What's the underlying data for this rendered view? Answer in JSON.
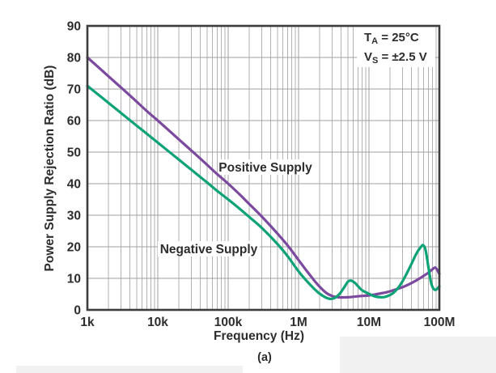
{
  "chart_data": {
    "type": "line",
    "title": "",
    "xlabel": "Frequency (Hz)",
    "ylabel": "Power Supply Rejection Ratio (dB)",
    "caption": "(a)",
    "x_scale": "log",
    "xlim": [
      1000,
      100000000
    ],
    "ylim": [
      0,
      90
    ],
    "y_ticks": [
      0,
      10,
      20,
      30,
      40,
      50,
      60,
      70,
      80,
      90
    ],
    "x_ticks": [
      {
        "value": 1000,
        "label": "1k"
      },
      {
        "value": 10000,
        "label": "10k"
      },
      {
        "value": 100000,
        "label": "100k"
      },
      {
        "value": 1000000,
        "label": "1M"
      },
      {
        "value": 10000000,
        "label": "10M"
      },
      {
        "value": 100000000,
        "label": "100M"
      }
    ],
    "grid": {
      "vertical": "log minor lines each decade",
      "horizontal": "every 10 dB",
      "major_color": "#9f9f9f",
      "minor_color": "#b2b2b2"
    },
    "frame_color": "#3c3c3c",
    "text_color": "#2d2d2d",
    "legend_position": "inline curve labels",
    "annotation": {
      "lines": [
        {
          "pre": "T",
          "sub": "A",
          "post": " = 25°C"
        },
        {
          "pre": "V",
          "sub": "S",
          "post": " = ±2.5 V"
        }
      ]
    },
    "series": [
      {
        "name": "Positive Supply",
        "color": "#7b4a9e",
        "points": [
          [
            1000,
            80
          ],
          [
            2000,
            74
          ],
          [
            3000,
            70.5
          ],
          [
            5000,
            66
          ],
          [
            7000,
            63
          ],
          [
            10000,
            60
          ],
          [
            20000,
            54
          ],
          [
            30000,
            50.5
          ],
          [
            50000,
            46
          ],
          [
            70000,
            43
          ],
          [
            100000,
            40
          ],
          [
            150000,
            36.3
          ],
          [
            200000,
            33.5
          ],
          [
            300000,
            29.6
          ],
          [
            500000,
            24.2
          ],
          [
            700000,
            20.4
          ],
          [
            1000000,
            15.8
          ],
          [
            1300000,
            12.4
          ],
          [
            1700000,
            9.1
          ],
          [
            2000000,
            7.3
          ],
          [
            2500000,
            5.3
          ],
          [
            3000000,
            4.4
          ],
          [
            3500000,
            4.05
          ],
          [
            4000000,
            3.95
          ],
          [
            5000000,
            4.0
          ],
          [
            7000000,
            4.3
          ],
          [
            10000000,
            4.6
          ],
          [
            13000000,
            5.0
          ],
          [
            17000000,
            5.5
          ],
          [
            20000000,
            5.9
          ],
          [
            30000000,
            7.2
          ],
          [
            40000000,
            8.5
          ],
          [
            50000000,
            9.7
          ],
          [
            60000000,
            10.8
          ],
          [
            70000000,
            11.8
          ],
          [
            80000000,
            12.9
          ],
          [
            87000000,
            13.4
          ],
          [
            93000000,
            12.7
          ],
          [
            100000000,
            11.4
          ]
        ]
      },
      {
        "name": "Negative Supply",
        "color": "#0ea277",
        "points": [
          [
            1000,
            71
          ],
          [
            2000,
            65.6
          ],
          [
            3000,
            62.4
          ],
          [
            5000,
            58.4
          ],
          [
            7000,
            55.8
          ],
          [
            10000,
            53
          ],
          [
            20000,
            47.6
          ],
          [
            30000,
            44.4
          ],
          [
            50000,
            40.4
          ],
          [
            70000,
            37.7
          ],
          [
            100000,
            35
          ],
          [
            150000,
            31.8
          ],
          [
            200000,
            29.4
          ],
          [
            300000,
            26
          ],
          [
            500000,
            20.9
          ],
          [
            700000,
            17
          ],
          [
            1000000,
            12.2
          ],
          [
            1300000,
            9.2
          ],
          [
            1700000,
            6.5
          ],
          [
            2000000,
            5.1
          ],
          [
            2400000,
            4.0
          ],
          [
            2800000,
            3.5
          ],
          [
            3200000,
            3.7
          ],
          [
            3800000,
            5.0
          ],
          [
            4400000,
            7.0
          ],
          [
            5000000,
            8.9
          ],
          [
            5500000,
            9.3
          ],
          [
            6200000,
            8.7
          ],
          [
            7000000,
            7.5
          ],
          [
            8000000,
            6.2
          ],
          [
            10000000,
            5.1
          ],
          [
            12000000,
            4.3
          ],
          [
            15000000,
            4.0
          ],
          [
            18000000,
            4.3
          ],
          [
            22000000,
            5.3
          ],
          [
            27000000,
            7.5
          ],
          [
            32000000,
            10.2
          ],
          [
            40000000,
            14.5
          ],
          [
            47000000,
            17.8
          ],
          [
            54000000,
            19.8
          ],
          [
            59000000,
            20.5
          ],
          [
            64000000,
            18.8
          ],
          [
            70000000,
            13.5
          ],
          [
            76000000,
            8.8
          ],
          [
            82000000,
            6.8
          ],
          [
            90000000,
            6.4
          ],
          [
            100000000,
            7.5
          ]
        ]
      }
    ]
  }
}
